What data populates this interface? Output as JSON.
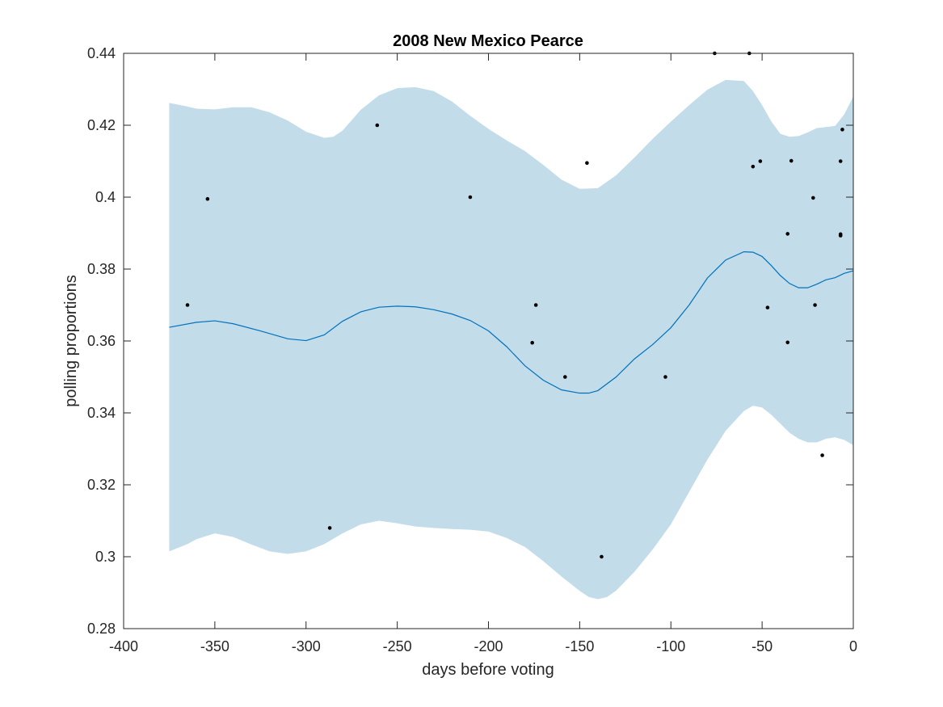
{
  "chart_data": {
    "type": "scatter",
    "title": "2008 New Mexico Pearce",
    "xlabel": "days before voting",
    "ylabel": "polling proportions",
    "xlim": [
      -400,
      0
    ],
    "ylim": [
      0.28,
      0.44
    ],
    "xticks": [
      -400,
      -350,
      -300,
      -250,
      -200,
      -150,
      -100,
      -50,
      0
    ],
    "xtick_labels": [
      "-400",
      "-350",
      "-300",
      "-250",
      "-200",
      "-150",
      "-100",
      "-50",
      "0"
    ],
    "yticks": [
      0.28,
      0.3,
      0.32,
      0.34,
      0.36,
      0.38,
      0.4,
      0.42,
      0.44
    ],
    "ytick_labels": [
      "0.28",
      "0.3",
      "0.32",
      "0.34",
      "0.36",
      "0.38",
      "0.4",
      "0.42",
      "0.44"
    ],
    "grid": false,
    "colors": {
      "band": "#c2dcea",
      "line": "#0072bd",
      "points": "#000000",
      "axis": "#262626"
    },
    "mean_curve": {
      "x": [
        -375,
        -360,
        -350,
        -340,
        -325,
        -310,
        -300,
        -290,
        -280,
        -270,
        -260,
        -250,
        -240,
        -230,
        -220,
        -210,
        -200,
        -190,
        -180,
        -170,
        -160,
        -150,
        -145,
        -140,
        -130,
        -120,
        -110,
        -100,
        -90,
        -80,
        -70,
        -60,
        -55,
        -50,
        -45,
        -40,
        -35,
        -30,
        -25,
        -20,
        -15,
        -10,
        -5,
        0
      ],
      "y": [
        0.3638,
        0.3652,
        0.3656,
        0.3648,
        0.3628,
        0.3606,
        0.3601,
        0.3617,
        0.3655,
        0.3681,
        0.3694,
        0.3697,
        0.3695,
        0.3687,
        0.3675,
        0.3657,
        0.3628,
        0.3584,
        0.3531,
        0.3491,
        0.3464,
        0.3455,
        0.3455,
        0.3462,
        0.35,
        0.355,
        0.359,
        0.3637,
        0.37,
        0.3775,
        0.3825,
        0.3848,
        0.3847,
        0.3835,
        0.381,
        0.3782,
        0.376,
        0.3748,
        0.3748,
        0.3758,
        0.377,
        0.3776,
        0.3788,
        0.3795
      ]
    },
    "band_upper": {
      "x": [
        -375,
        -365,
        -360,
        -350,
        -340,
        -330,
        -320,
        -310,
        -300,
        -290,
        -285,
        -280,
        -270,
        -260,
        -250,
        -240,
        -230,
        -220,
        -210,
        -200,
        -190,
        -180,
        -170,
        -160,
        -150,
        -140,
        -130,
        -120,
        -110,
        -100,
        -90,
        -80,
        -70,
        -60,
        -55,
        -50,
        -45,
        -40,
        -35,
        -30,
        -25,
        -20,
        -15,
        -10,
        -5,
        0
      ],
      "y": [
        0.4262,
        0.4252,
        0.4246,
        0.4244,
        0.425,
        0.425,
        0.4236,
        0.4213,
        0.4182,
        0.4165,
        0.4168,
        0.4185,
        0.4243,
        0.4283,
        0.4303,
        0.4306,
        0.4295,
        0.4266,
        0.4226,
        0.419,
        0.4158,
        0.4128,
        0.409,
        0.4049,
        0.4023,
        0.4025,
        0.4061,
        0.411,
        0.4162,
        0.421,
        0.4256,
        0.4299,
        0.4326,
        0.4323,
        0.4295,
        0.4256,
        0.4211,
        0.4176,
        0.4168,
        0.417,
        0.418,
        0.4192,
        0.4195,
        0.4198,
        0.423,
        0.428
      ]
    },
    "band_lower": {
      "x": [
        -375,
        -365,
        -360,
        -350,
        -340,
        -330,
        -320,
        -310,
        -300,
        -290,
        -280,
        -270,
        -260,
        -250,
        -240,
        -230,
        -220,
        -210,
        -200,
        -190,
        -180,
        -170,
        -160,
        -150,
        -145,
        -140,
        -135,
        -130,
        -120,
        -110,
        -100,
        -90,
        -80,
        -70,
        -60,
        -55,
        -50,
        -45,
        -40,
        -35,
        -30,
        -25,
        -20,
        -15,
        -10,
        -5,
        0
      ],
      "y": [
        0.3015,
        0.3035,
        0.3049,
        0.3065,
        0.3055,
        0.3034,
        0.3015,
        0.3008,
        0.3015,
        0.3035,
        0.3065,
        0.309,
        0.31,
        0.3093,
        0.3084,
        0.308,
        0.3077,
        0.3075,
        0.307,
        0.3052,
        0.3027,
        0.2988,
        0.2945,
        0.2905,
        0.2888,
        0.2882,
        0.2888,
        0.2906,
        0.2958,
        0.302,
        0.309,
        0.318,
        0.327,
        0.335,
        0.3405,
        0.342,
        0.3415,
        0.3395,
        0.337,
        0.3345,
        0.3328,
        0.3318,
        0.3318,
        0.3328,
        0.3332,
        0.3325,
        0.331
      ]
    },
    "points": [
      {
        "x": -365,
        "y": 0.37
      },
      {
        "x": -354,
        "y": 0.3995
      },
      {
        "x": -287,
        "y": 0.308
      },
      {
        "x": -261,
        "y": 0.42
      },
      {
        "x": -210,
        "y": 0.4
      },
      {
        "x": -176,
        "y": 0.3595
      },
      {
        "x": -174,
        "y": 0.37
      },
      {
        "x": -158,
        "y": 0.35
      },
      {
        "x": -146,
        "y": 0.4095
      },
      {
        "x": -138,
        "y": 0.3
      },
      {
        "x": -103,
        "y": 0.35
      },
      {
        "x": -76,
        "y": 0.44
      },
      {
        "x": -57,
        "y": 0.44
      },
      {
        "x": -55,
        "y": 0.4085
      },
      {
        "x": -51,
        "y": 0.41
      },
      {
        "x": -47,
        "y": 0.3693
      },
      {
        "x": -36,
        "y": 0.3898
      },
      {
        "x": -36,
        "y": 0.3596
      },
      {
        "x": -34,
        "y": 0.4101
      },
      {
        "x": -22,
        "y": 0.3998
      },
      {
        "x": -21,
        "y": 0.37
      },
      {
        "x": -17,
        "y": 0.3282
      },
      {
        "x": -7,
        "y": 0.41
      },
      {
        "x": -7,
        "y": 0.3897
      },
      {
        "x": -7,
        "y": 0.3893
      },
      {
        "x": -6,
        "y": 0.4188
      }
    ]
  }
}
